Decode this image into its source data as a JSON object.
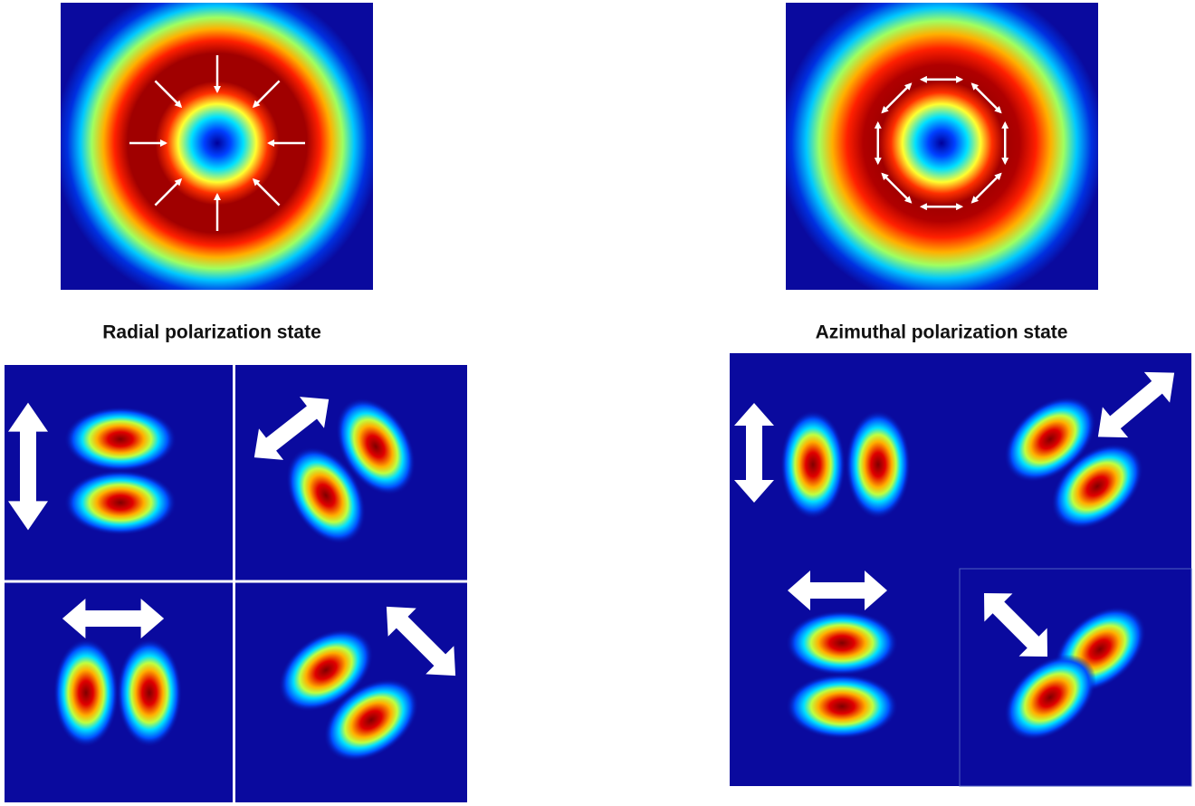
{
  "labels": {
    "radial": "Radial polarization state",
    "azimuthal": "Azimuthal polarization state"
  }
}
